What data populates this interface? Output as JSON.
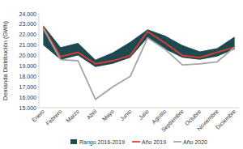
{
  "chart_data": {
    "type": "line",
    "y_label": "Demanda Distribución (GWh)",
    "categories": [
      "Enero",
      "Febrero",
      "Marzo",
      "Abril",
      "Mayo",
      "Junio",
      "Julio",
      "Agosto",
      "Septiembre",
      "Octubre",
      "Noviembre",
      "Diciembre"
    ],
    "series": [
      {
        "name": "Rango 2016-2019",
        "type": "range",
        "color": "#1c4a50",
        "values": [
          22900,
          20800,
          21200,
          19600,
          20300,
          21300,
          22500,
          21900,
          21000,
          20400,
          20700,
          21800
        ],
        "low": [
          21000,
          19600,
          20000,
          18900,
          19200,
          19800,
          21700,
          20600,
          19800,
          19600,
          19900,
          20600
        ]
      },
      {
        "name": "Año 2019",
        "type": "line",
        "color": "#e8392c",
        "values": [
          22700,
          19900,
          20300,
          19200,
          19500,
          20000,
          22300,
          21200,
          20000,
          19800,
          20300,
          20800
        ]
      },
      {
        "name": "Año 2020",
        "type": "line",
        "color": "#a3a3a3",
        "values": [
          22600,
          19600,
          19500,
          15800,
          17000,
          18000,
          21700,
          20600,
          19100,
          19200,
          19400,
          20800
        ]
      }
    ],
    "ylim": [
      15000,
      24000
    ],
    "yticks": [
      {
        "value": 15000,
        "label": "15.000"
      },
      {
        "value": 16000,
        "label": "16.000"
      },
      {
        "value": 17000,
        "label": "17.000"
      },
      {
        "value": 18000,
        "label": "18.000"
      },
      {
        "value": 19000,
        "label": "19.000"
      },
      {
        "value": 20000,
        "label": "20.000"
      },
      {
        "value": 21000,
        "label": "21.000"
      },
      {
        "value": 22000,
        "label": "22.000"
      },
      {
        "value": 23000,
        "label": "23.000"
      },
      {
        "value": 24000,
        "label": "24.000"
      }
    ],
    "grid": false,
    "legend": "bottom"
  }
}
